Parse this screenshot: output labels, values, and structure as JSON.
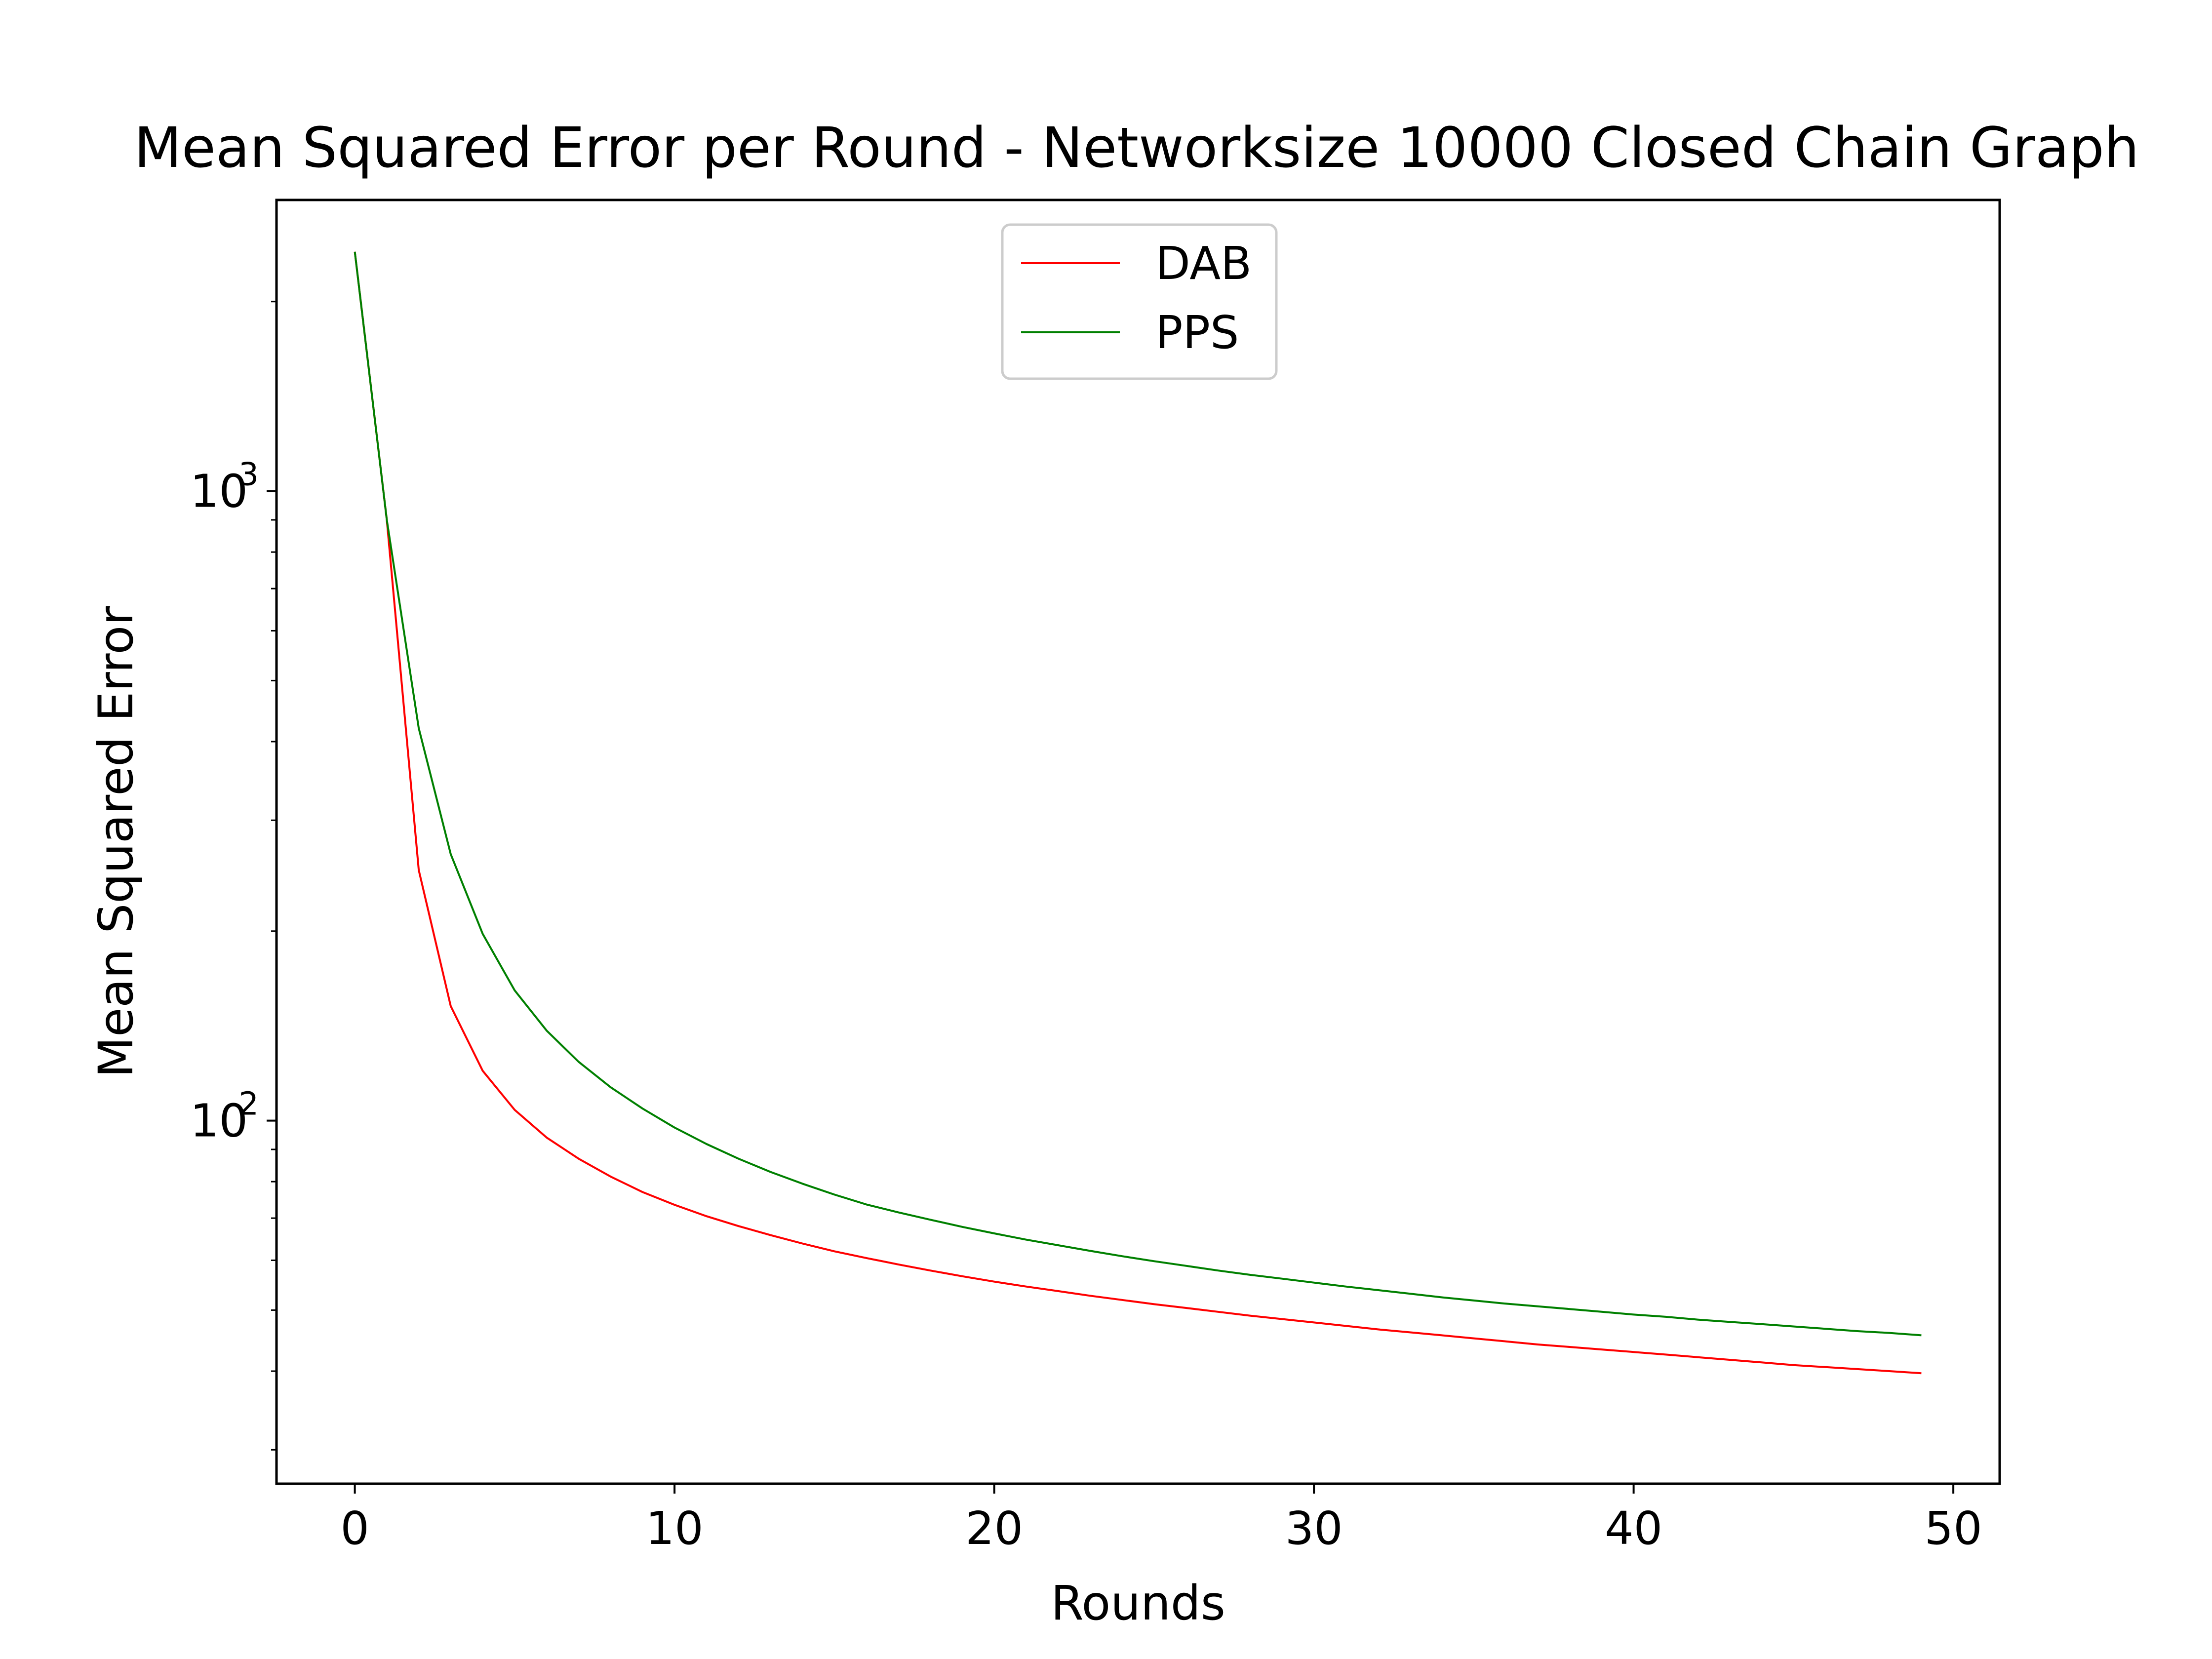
{
  "chart_data": {
    "type": "line",
    "title": "Mean Squared Error per Round - Networksize 10000 Closed Chain Graph",
    "xlabel": "Rounds",
    "ylabel": "Mean Squared Error",
    "xlim": [
      -2.45,
      51.45
    ],
    "ylim": [
      26.5,
      2900
    ],
    "yscale": "log",
    "xticks": [
      0,
      10,
      20,
      30,
      40,
      50
    ],
    "yticks": [
      {
        "value": 100,
        "base": "10",
        "exp": "2"
      },
      {
        "value": 1000,
        "base": "10",
        "exp": "3"
      }
    ],
    "legend": "top-center",
    "grid": false,
    "series": [
      {
        "name": "DAB",
        "color": "#ff0000",
        "x": [
          0,
          1,
          2,
          3,
          4,
          5,
          6,
          7,
          8,
          9,
          10,
          11,
          12,
          13,
          14,
          15,
          16,
          17,
          18,
          19,
          20,
          21,
          22,
          23,
          24,
          25,
          26,
          27,
          28,
          29,
          30,
          31,
          32,
          33,
          34,
          35,
          36,
          37,
          38,
          39,
          40,
          41,
          42,
          43,
          44,
          45,
          46,
          47,
          48,
          49
        ],
        "values": [
          2400,
          900,
          250,
          152,
          120,
          104,
          94,
          87,
          81.5,
          77,
          73.5,
          70.5,
          68,
          65.8,
          63.8,
          62,
          60.5,
          59.1,
          57.8,
          56.6,
          55.5,
          54.5,
          53.6,
          52.7,
          51.9,
          51.1,
          50.4,
          49.7,
          49.0,
          48.4,
          47.8,
          47.2,
          46.6,
          46.1,
          45.6,
          45.1,
          44.6,
          44.1,
          43.7,
          43.3,
          42.9,
          42.5,
          42.1,
          41.7,
          41.3,
          40.9,
          40.6,
          40.3,
          40.0,
          39.7
        ]
      },
      {
        "name": "PPS",
        "color": "#008000",
        "x": [
          0,
          1,
          2,
          3,
          4,
          5,
          6,
          7,
          8,
          9,
          10,
          11,
          12,
          13,
          14,
          15,
          16,
          17,
          18,
          19,
          20,
          21,
          22,
          23,
          24,
          25,
          26,
          27,
          28,
          29,
          30,
          31,
          32,
          33,
          34,
          35,
          36,
          37,
          38,
          39,
          40,
          41,
          42,
          43,
          44,
          45,
          46,
          47,
          48,
          49
        ],
        "values": [
          2400,
          900,
          420,
          265,
          198,
          161,
          139,
          124,
          113,
          104.5,
          97.5,
          91.8,
          87,
          82.9,
          79.4,
          76.3,
          73.6,
          71.5,
          69.6,
          67.8,
          66.2,
          64.7,
          63.4,
          62.1,
          60.9,
          59.8,
          58.8,
          57.8,
          56.9,
          56.1,
          55.3,
          54.5,
          53.8,
          53.1,
          52.4,
          51.8,
          51.2,
          50.7,
          50.2,
          49.7,
          49.2,
          48.8,
          48.3,
          47.9,
          47.5,
          47.1,
          46.7,
          46.3,
          46.0,
          45.6
        ]
      }
    ]
  }
}
